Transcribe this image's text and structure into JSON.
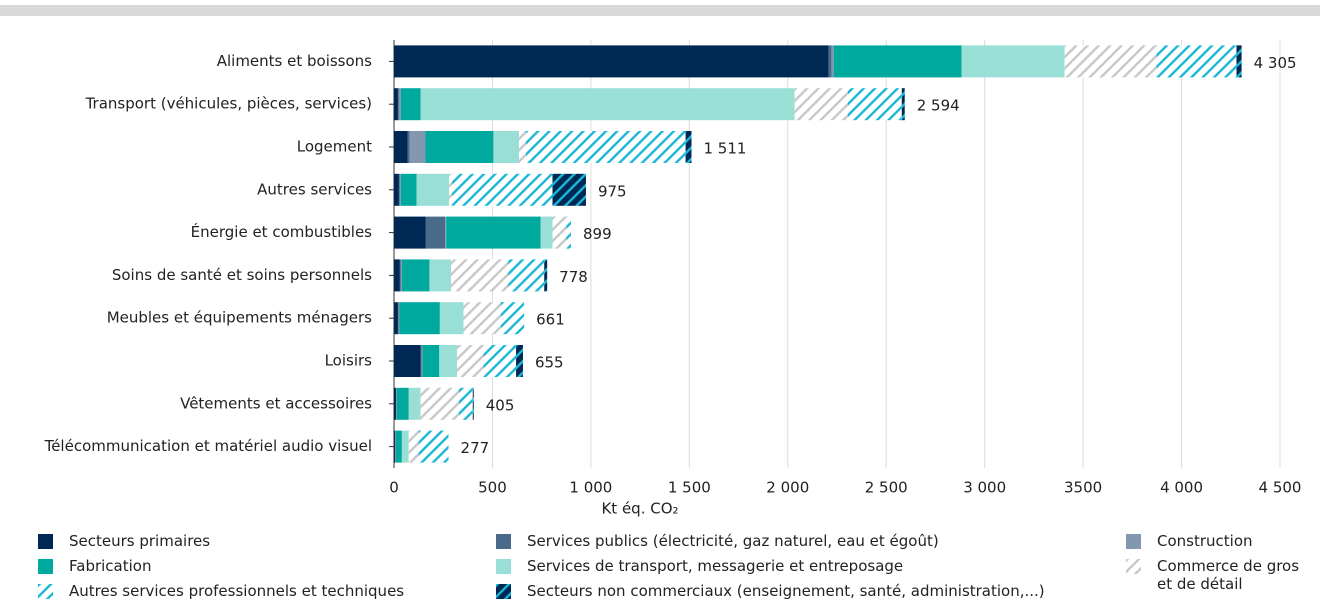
{
  "chart_data": {
    "type": "stacked-barh",
    "categories": [
      "Aliments et boissons",
      "Transport (véhicules, pièces, services)",
      "Logement",
      "Autres services",
      "Énergie et combustibles",
      "Soins de santé et soins personnels",
      "Meubles et équipements ménagers",
      "Loisirs",
      "Vêtements et accessoires",
      "Télécommunication et matériel audio visuel"
    ],
    "series": [
      {
        "name": "Secteurs primaires",
        "color": "#002855",
        "values": [
          2208,
          20,
          70,
          25,
          160,
          30,
          20,
          135,
          10,
          5
        ]
      },
      {
        "name": "Services publics (électricité, gaz naturel, eau et égoût)",
        "color": "#4a6a8a",
        "values": [
          15,
          5,
          10,
          5,
          100,
          5,
          3,
          5,
          2,
          2
        ]
      },
      {
        "name": "Construction",
        "color": "#8397b0",
        "values": [
          10,
          10,
          80,
          5,
          5,
          5,
          5,
          5,
          3,
          3
        ]
      },
      {
        "name": "Fabrication",
        "color": "#00a99d",
        "values": [
          650,
          100,
          345,
          80,
          480,
          140,
          205,
          85,
          60,
          30
        ]
      },
      {
        "name": "Services de transport, messagerie et entreposage",
        "color": "#9adfd6",
        "values": [
          523,
          1900,
          130,
          165,
          60,
          110,
          120,
          90,
          60,
          35
        ]
      },
      {
        "name": "Commerce de gros et de détail",
        "color": "#c8c8c8",
        "hatched": true,
        "background": "#ffffff",
        "values": [
          467,
          270,
          35,
          15,
          70,
          290,
          190,
          135,
          195,
          50
        ]
      },
      {
        "name": "Autres services professionnels et techniques",
        "color": "#1ab7d6",
        "hatched": true,
        "background": "#ffffff",
        "values": [
          406,
          274,
          811,
          510,
          24,
          183,
          118,
          165,
          70,
          152
        ]
      },
      {
        "name": "Secteurs non commerciaux (enseignement, santé, administration,...)",
        "color": "#1ab7d6",
        "hatched": true,
        "background": "#002855",
        "values": [
          26,
          15,
          30,
          170,
          0,
          15,
          0,
          35,
          5,
          0
        ]
      }
    ],
    "totals": [
      4305,
      2594,
      1511,
      975,
      899,
      778,
      661,
      655,
      405,
      277
    ],
    "value_labels": [
      "4 305",
      "2 594",
      "1 511",
      "975",
      "899",
      "778",
      "661",
      "655",
      "405",
      "277"
    ],
    "xlabel": "Kt éq. CO₂",
    "xlim": [
      0,
      4500
    ],
    "xticks": [
      0,
      500,
      {
        "value": 1000,
        "label": "1 000"
      },
      {
        "value": 1500,
        "label": "1 500"
      },
      {
        "value": 2000,
        "label": "2 000"
      },
      {
        "value": 2500,
        "label": "2 500"
      },
      {
        "value": 3000,
        "label": "3 000"
      },
      3500,
      {
        "value": 4000,
        "label": "4 000"
      },
      {
        "value": 4500,
        "label": "4 500"
      }
    ],
    "grid": true
  }
}
